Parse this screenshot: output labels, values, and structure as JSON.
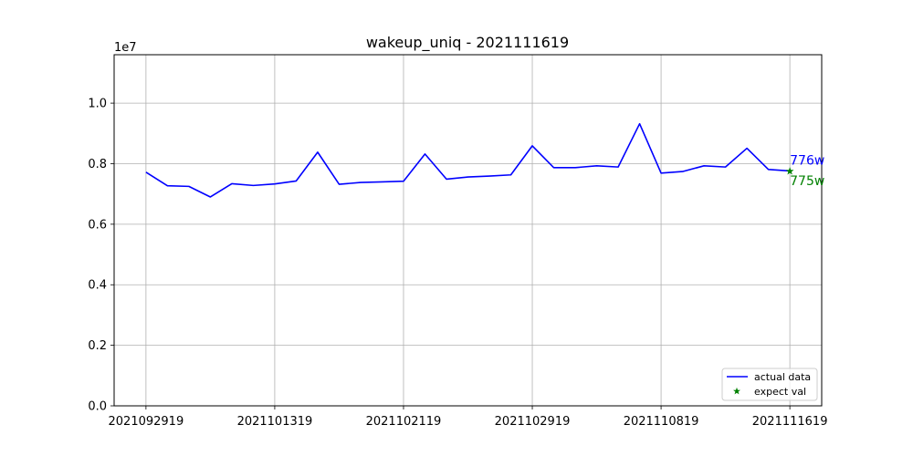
{
  "chart_data": {
    "type": "line",
    "title": "wakeup_uniq - 2021111619",
    "xlabel": "",
    "ylabel": "",
    "y_offset_label": "1e7",
    "ylim": [
      0,
      11600000
    ],
    "x_tick_labels": [
      "2021092919",
      "2021101319",
      "2021102119",
      "2021102919",
      "2021110819",
      "2021111619"
    ],
    "x_tick_indices": [
      0,
      6,
      12,
      18,
      24,
      30
    ],
    "y_ticks": [
      0,
      2000000,
      4000000,
      6000000,
      8000000,
      10000000
    ],
    "y_tick_labels": [
      "0.0",
      "0.2",
      "0.4",
      "0.6",
      "0.8",
      "1.0"
    ],
    "grid": true,
    "series": [
      {
        "name": "actual data",
        "color": "#0000ff",
        "x": [
          0,
          1,
          2,
          3,
          4,
          5,
          6,
          7,
          8,
          9,
          10,
          11,
          12,
          13,
          14,
          15,
          16,
          17,
          18,
          19,
          20,
          21,
          22,
          23,
          24,
          25,
          26,
          27,
          28,
          29,
          30
        ],
        "values": [
          7720000,
          7270000,
          7250000,
          6900000,
          7340000,
          7280000,
          7330000,
          7430000,
          8380000,
          7320000,
          7380000,
          7400000,
          7420000,
          8320000,
          7490000,
          7560000,
          7590000,
          7630000,
          8590000,
          7870000,
          7870000,
          7930000,
          7890000,
          9320000,
          7690000,
          7740000,
          7930000,
          7890000,
          8510000,
          7810000,
          7760000
        ]
      }
    ],
    "expected": {
      "name": "expect val",
      "color": "#008000",
      "x": 30,
      "value": 7750000,
      "marker": "star"
    },
    "annotations": [
      {
        "text": "776w",
        "color": "#0000ff"
      },
      {
        "text": "775w",
        "color": "#008000"
      }
    ],
    "legend": {
      "placement": "lower-right",
      "entries": [
        "actual data",
        "expect val"
      ]
    }
  }
}
